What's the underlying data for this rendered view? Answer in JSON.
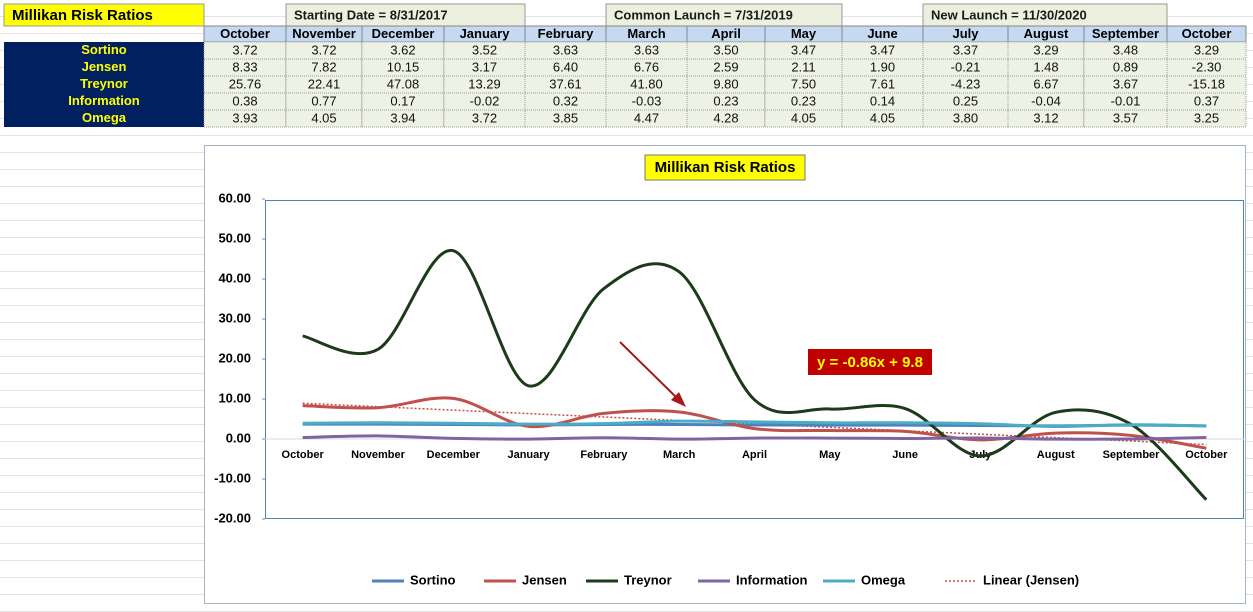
{
  "header": {
    "title": "Millikan Risk Ratios",
    "notes": [
      "Starting Date = 8/31/2017",
      "Common Launch = 7/31/2019",
      "New Launch = 11/30/2020"
    ]
  },
  "table": {
    "columns": [
      "October",
      "November",
      "December",
      "January",
      "February",
      "March",
      "April",
      "May",
      "June",
      "July",
      "August",
      "September",
      "October"
    ],
    "rows": [
      {
        "label": "Sortino",
        "cells": [
          "3.72",
          "3.72",
          "3.62",
          "3.52",
          "3.63",
          "3.63",
          "3.50",
          "3.47",
          "3.47",
          "3.37",
          "3.29",
          "3.48",
          "3.29"
        ]
      },
      {
        "label": "Jensen",
        "cells": [
          "8.33",
          "7.82",
          "10.15",
          "3.17",
          "6.40",
          "6.76",
          "2.59",
          "2.11",
          "1.90",
          "-0.21",
          "1.48",
          "0.89",
          "-2.30"
        ]
      },
      {
        "label": "Treynor",
        "cells": [
          "25.76",
          "22.41",
          "47.08",
          "13.29",
          "37.61",
          "41.80",
          "9.80",
          "7.50",
          "7.61",
          "-4.23",
          "6.67",
          "3.67",
          "-15.18"
        ]
      },
      {
        "label": "Information",
        "cells": [
          "0.38",
          "0.77",
          "0.17",
          "-0.02",
          "0.32",
          "-0.03",
          "0.23",
          "0.23",
          "0.14",
          "0.25",
          "-0.04",
          "-0.01",
          "0.37"
        ]
      },
      {
        "label": "Omega",
        "cells": [
          "3.93",
          "4.05",
          "3.94",
          "3.72",
          "3.85",
          "4.47",
          "4.28",
          "4.05",
          "4.05",
          "3.80",
          "3.12",
          "3.57",
          "3.25"
        ]
      }
    ]
  },
  "chart_data": {
    "type": "line",
    "title": "Millikan Risk Ratios",
    "smooth": true,
    "categories": [
      "October",
      "November",
      "December",
      "January",
      "February",
      "March",
      "April",
      "May",
      "June",
      "July",
      "August",
      "September",
      "October"
    ],
    "series": [
      {
        "name": "Sortino",
        "color": "#4f81bd",
        "values": [
          3.72,
          3.72,
          3.62,
          3.52,
          3.63,
          3.63,
          3.5,
          3.47,
          3.47,
          3.37,
          3.29,
          3.48,
          3.29
        ]
      },
      {
        "name": "Jensen",
        "color": "#c0504d",
        "values": [
          8.33,
          7.82,
          10.15,
          3.17,
          6.4,
          6.76,
          2.59,
          2.11,
          1.9,
          -0.21,
          1.48,
          0.89,
          -2.3
        ]
      },
      {
        "name": "Treynor",
        "color": "#1d3b1a",
        "values": [
          25.76,
          22.41,
          47.08,
          13.29,
          37.61,
          41.8,
          9.8,
          7.5,
          7.61,
          -4.23,
          6.67,
          3.67,
          -15.18
        ]
      },
      {
        "name": "Information",
        "color": "#8064a2",
        "values": [
          0.38,
          0.77,
          0.17,
          -0.02,
          0.32,
          -0.03,
          0.23,
          0.23,
          0.14,
          0.25,
          -0.04,
          -0.01,
          0.37
        ]
      },
      {
        "name": "Omega",
        "color": "#4bacc6",
        "values": [
          3.93,
          4.05,
          3.94,
          3.72,
          3.85,
          4.47,
          4.28,
          4.05,
          4.05,
          3.8,
          3.12,
          3.57,
          3.25
        ]
      }
    ],
    "trendline": {
      "name": "Linear (Jensen)",
      "label": "y = -0.86x + 9.8",
      "slope": -0.86,
      "intercept": 9.8,
      "color": "#c0504d"
    },
    "ylim": [
      -20,
      60
    ],
    "yticks": [
      {
        "value": -20,
        "label": "-20.00"
      },
      {
        "value": -10,
        "label": "-10.00"
      },
      {
        "value": 0,
        "label": "0.00"
      },
      {
        "value": 10,
        "label": "10.00"
      },
      {
        "value": 20,
        "label": "20.00"
      },
      {
        "value": 30,
        "label": "30.00"
      },
      {
        "value": 40,
        "label": "40.00"
      },
      {
        "value": 50,
        "label": "50.00"
      },
      {
        "value": 60,
        "label": "60.00"
      }
    ],
    "legend": "bottom"
  }
}
